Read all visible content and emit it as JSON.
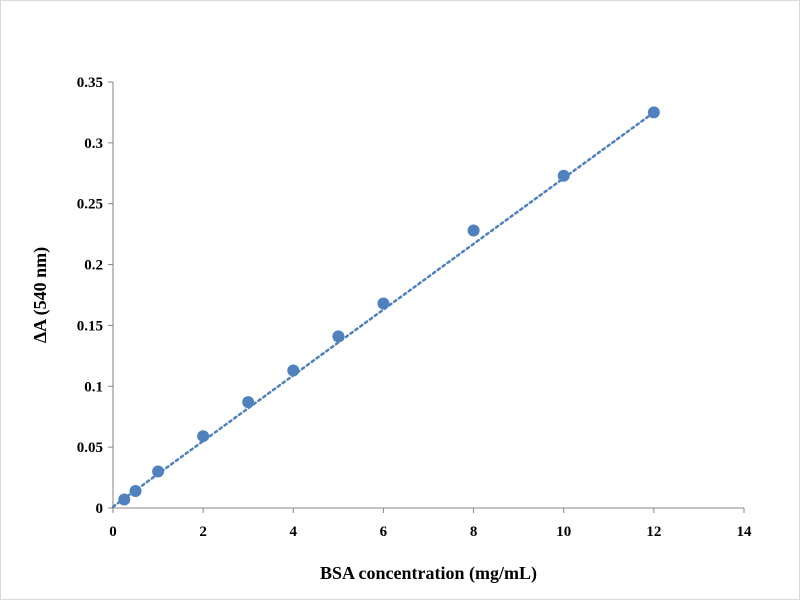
{
  "chart_data": {
    "type": "scatter",
    "title": "",
    "xlabel": "BSA concentration (mg/mL)",
    "ylabel": "ΔA (540 nm)",
    "xlim": [
      0,
      14
    ],
    "ylim": [
      0,
      0.35
    ],
    "x_ticks": [
      "0",
      "2",
      "4",
      "6",
      "8",
      "10",
      "12",
      "14"
    ],
    "y_ticks": [
      "0",
      "0.05",
      "0.1",
      "0.15",
      "0.2",
      "0.25",
      "0.3",
      "0.35"
    ],
    "grid": false,
    "legend": "none",
    "marker_color": "#4f81bd",
    "trendline": {
      "style": "dotted",
      "color": "#4f81bd",
      "from": [
        0,
        0.001
      ],
      "to": [
        12,
        0.325
      ]
    },
    "series": [
      {
        "x": [
          0.25,
          0.5,
          1,
          2,
          3,
          4,
          5,
          6,
          8,
          10,
          12
        ],
        "y": [
          0.007,
          0.014,
          0.03,
          0.059,
          0.087,
          0.113,
          0.141,
          0.168,
          0.228,
          0.273,
          0.325
        ]
      }
    ]
  }
}
